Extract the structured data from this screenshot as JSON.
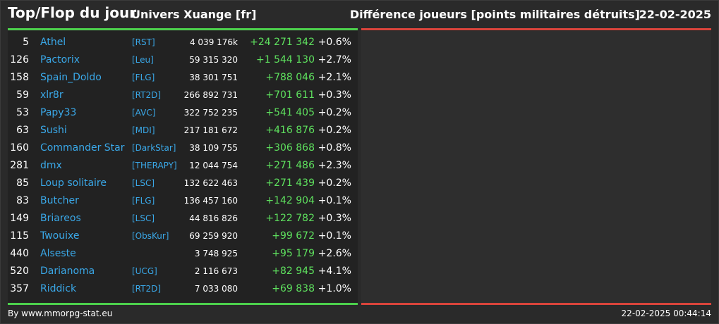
{
  "header": {
    "title": "Top/Flop du jour",
    "universe": "Univers Xuange [fr]",
    "metric": "Différence joueurs [points militaires détruits]",
    "date": "22-02-2025"
  },
  "colors": {
    "background": "#2a2a2a",
    "top_accent": "#4cd04c",
    "flop_accent": "#d9443b",
    "name_link": "#3aa8e8",
    "gain": "#5ee05e"
  },
  "top_rows": [
    {
      "rank": "5",
      "name": "Athel",
      "alliance": "[RST]",
      "points": "4 039 176k",
      "diff": "+24 271 342",
      "pct": "+0.6%"
    },
    {
      "rank": "126",
      "name": "Pactorix",
      "alliance": "[Leu]",
      "points": "59 315 320",
      "diff": "+1 544 130",
      "pct": "+2.7%"
    },
    {
      "rank": "158",
      "name": "Spain_Doldo",
      "alliance": "[FLG]",
      "points": "38 301 751",
      "diff": "+788 046",
      "pct": "+2.1%"
    },
    {
      "rank": "59",
      "name": "xlr8r",
      "alliance": "[RT2D]",
      "points": "266 892 731",
      "diff": "+701 611",
      "pct": "+0.3%"
    },
    {
      "rank": "53",
      "name": "Papy33",
      "alliance": "[AVC]",
      "points": "322 752 235",
      "diff": "+541 405",
      "pct": "+0.2%"
    },
    {
      "rank": "63",
      "name": "Sushi",
      "alliance": "[MDI]",
      "points": "217 181 672",
      "diff": "+416 876",
      "pct": "+0.2%"
    },
    {
      "rank": "160",
      "name": "Commander Star",
      "alliance": "[DarkStar]",
      "points": "38 109 755",
      "diff": "+306 868",
      "pct": "+0.8%"
    },
    {
      "rank": "281",
      "name": "dmx",
      "alliance": "[THERAPY]",
      "points": "12 044 754",
      "diff": "+271 486",
      "pct": "+2.3%"
    },
    {
      "rank": "85",
      "name": "Loup solitaire",
      "alliance": "[LSC]",
      "points": "132 622 463",
      "diff": "+271 439",
      "pct": "+0.2%"
    },
    {
      "rank": "83",
      "name": "Butcher",
      "alliance": "[FLG]",
      "points": "136 457 160",
      "diff": "+142 904",
      "pct": "+0.1%"
    },
    {
      "rank": "149",
      "name": "Briareos",
      "alliance": "[LSC]",
      "points": "44 816 826",
      "diff": "+122 782",
      "pct": "+0.3%"
    },
    {
      "rank": "115",
      "name": "Twouixe",
      "alliance": "[ObsKur]",
      "points": "69 259 920",
      "diff": "+99 672",
      "pct": "+0.1%"
    },
    {
      "rank": "440",
      "name": "Alseste",
      "alliance": "",
      "points": "3 748 925",
      "diff": "+95 179",
      "pct": "+2.6%"
    },
    {
      "rank": "520",
      "name": "Darianoma",
      "alliance": "[UCG]",
      "points": "2 116 673",
      "diff": "+82 945",
      "pct": "+4.1%"
    },
    {
      "rank": "357",
      "name": "Riddick",
      "alliance": "[RT2D]",
      "points": "7 033 080",
      "diff": "+69 838",
      "pct": "+1.0%"
    }
  ],
  "footer": {
    "credit": "By www.mmorpg-stat.eu",
    "timestamp": "22-02-2025 00:44:14"
  }
}
